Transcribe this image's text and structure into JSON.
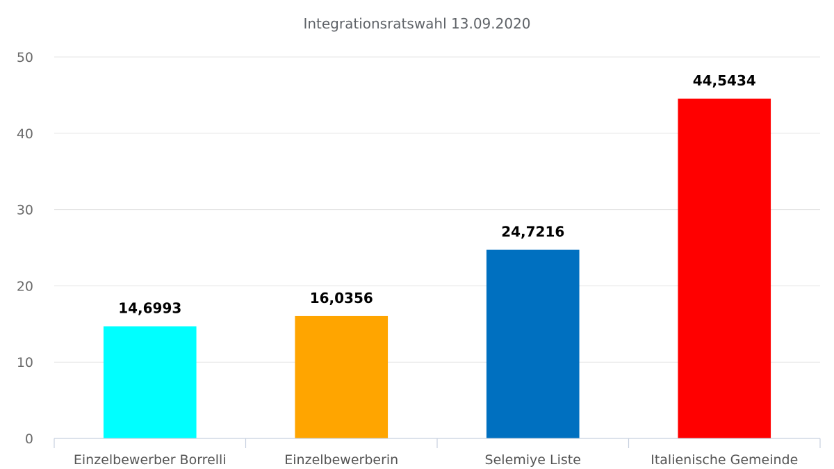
{
  "chart_data": {
    "type": "bar",
    "title": "Integrationsratswahl 13.09.2020",
    "categories": [
      "Einzelbewerber Borrelli",
      "Einzelbewerberin",
      "Selemiye Liste",
      "Italienische Gemeinde"
    ],
    "values": [
      14.6993,
      16.0356,
      24.7216,
      44.5434
    ],
    "data_labels": [
      "14,6993",
      "16,0356",
      "24,7216",
      "44,5434"
    ],
    "colors": [
      "#00ffff",
      "#ffa500",
      "#0070c0",
      "#ff0000"
    ],
    "yticks": [
      0,
      10,
      20,
      30,
      40,
      50
    ],
    "ylim": [
      0,
      50
    ],
    "xlabel": "",
    "ylabel": "",
    "grid": true,
    "legend": "none"
  }
}
